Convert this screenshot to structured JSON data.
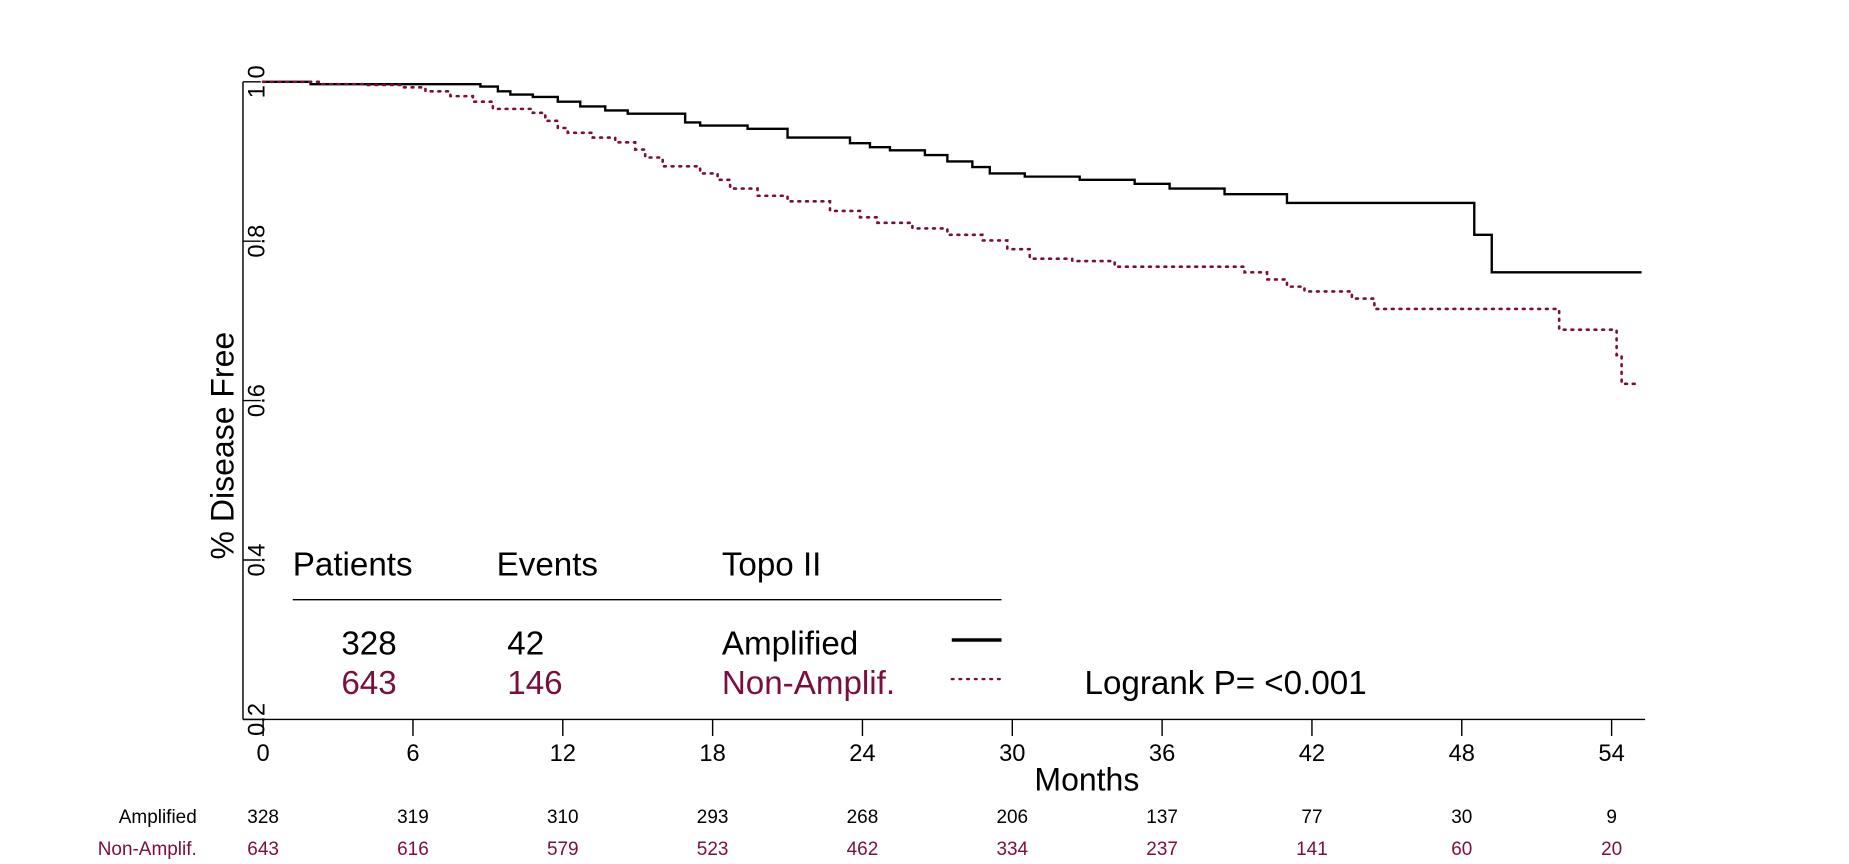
{
  "chart_data": {
    "type": "step",
    "y_label": "% Disease Free",
    "x_label": "Months",
    "xlim": [
      0,
      55.2
    ],
    "ylim": [
      0.2,
      1.0
    ],
    "xticks": [
      0,
      6,
      12,
      18,
      24,
      30,
      36,
      42,
      48,
      54
    ],
    "yticks": [
      0.2,
      0.4,
      0.6,
      0.8,
      {
        "value": 1.0,
        "label": "1.0"
      }
    ],
    "legend_headers": [
      "Patients",
      "Events",
      "Topo II"
    ],
    "annotation": "Logrank P= <0.001",
    "series": [
      {
        "name": "Amplified",
        "color": "#000000",
        "dash": "solid",
        "patients": 328,
        "events": 42,
        "x": [
          0,
          1.9,
          8.7,
          9.4,
          9.9,
          10.8,
          11.8,
          12.7,
          13.7,
          14.6,
          16.9,
          17.5,
          19.4,
          21.0,
          23.5,
          24.3,
          25.1,
          26.5,
          27.4,
          28.4,
          29.1,
          30.5,
          32.7,
          34.9,
          36.3,
          38.5,
          41.0,
          48.5,
          49.2,
          55.2
        ],
        "values": [
          1.0,
          0.997,
          0.994,
          0.988,
          0.984,
          0.981,
          0.975,
          0.969,
          0.964,
          0.96,
          0.949,
          0.945,
          0.941,
          0.93,
          0.923,
          0.918,
          0.914,
          0.908,
          0.9,
          0.893,
          0.885,
          0.881,
          0.877,
          0.872,
          0.866,
          0.859,
          0.848,
          0.808,
          0.761,
          0.761
        ],
        "at_risk": [
          328,
          319,
          310,
          293,
          268,
          206,
          137,
          77,
          30,
          9
        ]
      },
      {
        "name": "Non-Amplif.",
        "color": "#7a0f3f",
        "dash": "dotted",
        "patients": 643,
        "events": 146,
        "x": [
          0,
          2.3,
          4.2,
          5.6,
          6.5,
          7.5,
          8.4,
          9.2,
          10.8,
          11.3,
          11.8,
          12.2,
          13.2,
          14.1,
          14.9,
          15.3,
          16.0,
          17.5,
          18.2,
          18.7,
          19.8,
          21.0,
          22.7,
          23.9,
          24.6,
          26.0,
          27.4,
          28.8,
          29.8,
          30.7,
          32.4,
          34.1,
          39.3,
          40.2,
          41.0,
          41.7,
          43.6,
          44.5,
          51.9,
          54.2,
          54.4,
          55.0
        ],
        "values": [
          1.0,
          0.997,
          0.996,
          0.993,
          0.988,
          0.982,
          0.975,
          0.966,
          0.961,
          0.951,
          0.942,
          0.936,
          0.93,
          0.924,
          0.915,
          0.905,
          0.894,
          0.885,
          0.877,
          0.866,
          0.857,
          0.85,
          0.838,
          0.83,
          0.823,
          0.816,
          0.808,
          0.801,
          0.79,
          0.778,
          0.775,
          0.768,
          0.761,
          0.752,
          0.743,
          0.737,
          0.728,
          0.715,
          0.689,
          0.657,
          0.621,
          0.621
        ],
        "at_risk": [
          643,
          616,
          579,
          523,
          462,
          334,
          237,
          141,
          60,
          20
        ]
      }
    ]
  }
}
